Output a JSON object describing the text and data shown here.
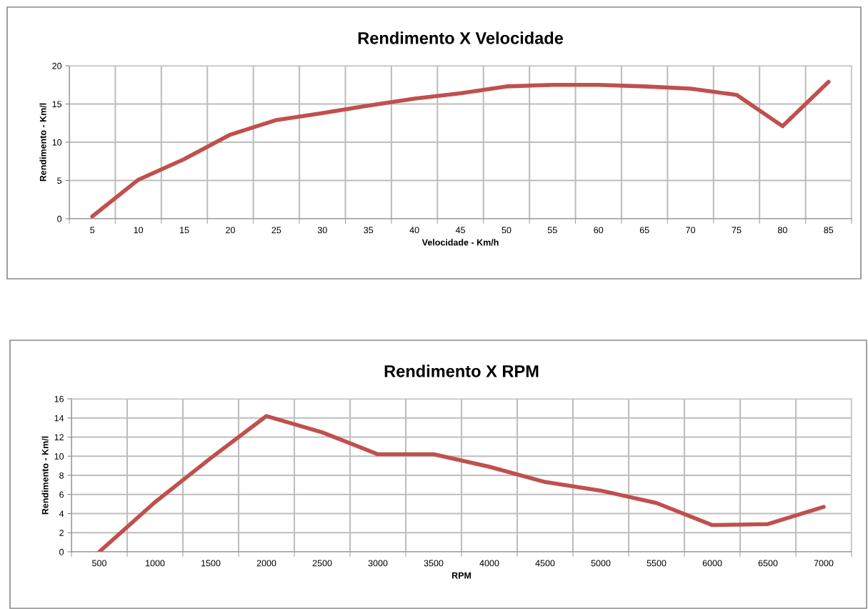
{
  "chart_data": [
    {
      "type": "line",
      "title": "Rendimento X Velocidade",
      "xlabel": "Velocidade - Km/h",
      "ylabel": "Rendimento - Km/l",
      "categories": [
        "5",
        "10",
        "15",
        "20",
        "25",
        "30",
        "35",
        "40",
        "45",
        "50",
        "55",
        "60",
        "65",
        "70",
        "75",
        "80",
        "85"
      ],
      "series": [
        {
          "color": "#c0504d",
          "values": [
            0.3,
            5.1,
            7.8,
            11.0,
            12.9,
            13.8,
            14.8,
            15.7,
            16.4,
            17.3,
            17.5,
            17.5,
            17.3,
            17.0,
            16.2,
            12.1,
            17.9
          ]
        }
      ],
      "ylim": [
        0,
        20
      ],
      "yticks": [
        0,
        5,
        10,
        15,
        20
      ],
      "grid": true,
      "marker": "none",
      "line_style": "solid"
    },
    {
      "type": "line",
      "title": "Rendimento X RPM",
      "xlabel": "RPM",
      "ylabel": "Rendimento - Km/l",
      "categories": [
        "500",
        "1000",
        "1500",
        "2000",
        "2500",
        "3000",
        "3500",
        "4000",
        "4500",
        "5000",
        "5500",
        "6000",
        "6500",
        "7000"
      ],
      "series": [
        {
          "color": "#c0504d",
          "values": [
            0.0,
            5.2,
            9.8,
            14.2,
            12.5,
            10.2,
            10.2,
            8.9,
            7.3,
            6.4,
            5.1,
            2.8,
            2.9,
            4.7
          ]
        }
      ],
      "ylim": [
        0,
        16
      ],
      "yticks": [
        0,
        2,
        4,
        6,
        8,
        10,
        12,
        14,
        16
      ],
      "grid": true,
      "marker": "none",
      "line_style": "solid"
    }
  ]
}
